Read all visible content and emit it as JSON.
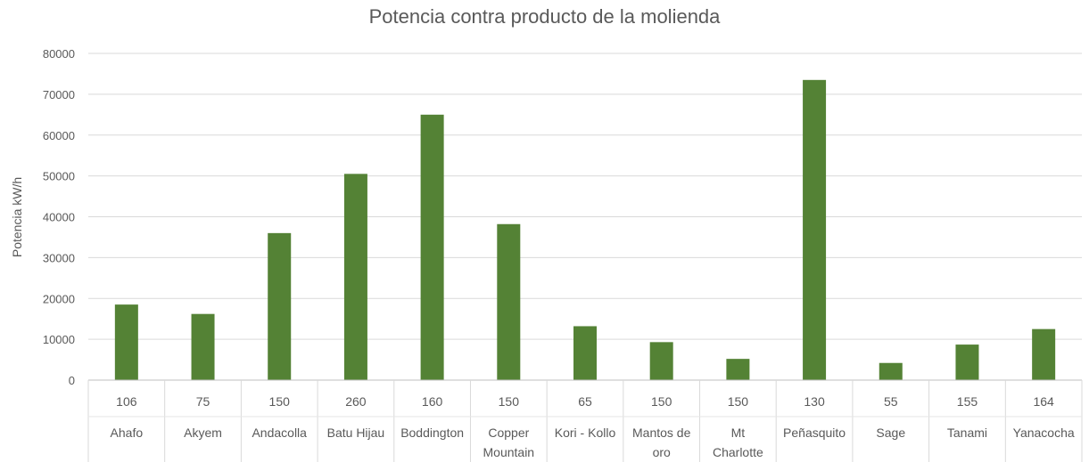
{
  "chart_data": {
    "type": "bar",
    "title": "Potencia contra producto de la molienda",
    "xlabel": "",
    "ylabel": "Potencia kW/h",
    "ylim": [
      0,
      80000
    ],
    "yticks": [
      0,
      10000,
      20000,
      30000,
      40000,
      50000,
      60000,
      70000,
      80000
    ],
    "grid": true,
    "legend": "none",
    "bar_color": "#548235",
    "categories": [
      {
        "value_label": "106",
        "name": "Ahafo"
      },
      {
        "value_label": "75",
        "name": "Akyem"
      },
      {
        "value_label": "150",
        "name": "Andacolla"
      },
      {
        "value_label": "260",
        "name": "Batu Hijau"
      },
      {
        "value_label": "160",
        "name": "Boddington"
      },
      {
        "value_label": "150",
        "name": "Copper Mountain"
      },
      {
        "value_label": "65",
        "name": "Kori - Kollo"
      },
      {
        "value_label": "150",
        "name": "Mantos de oro"
      },
      {
        "value_label": "150",
        "name": "Mt Charlotte"
      },
      {
        "value_label": "130",
        "name": "Peñasquito"
      },
      {
        "value_label": "55",
        "name": "Sage"
      },
      {
        "value_label": "155",
        "name": "Tanami"
      },
      {
        "value_label": "164",
        "name": "Yanacocha"
      }
    ],
    "values": [
      18500,
      16200,
      36000,
      50500,
      65000,
      38200,
      13200,
      9300,
      5200,
      73500,
      4200,
      8700,
      12500
    ]
  }
}
